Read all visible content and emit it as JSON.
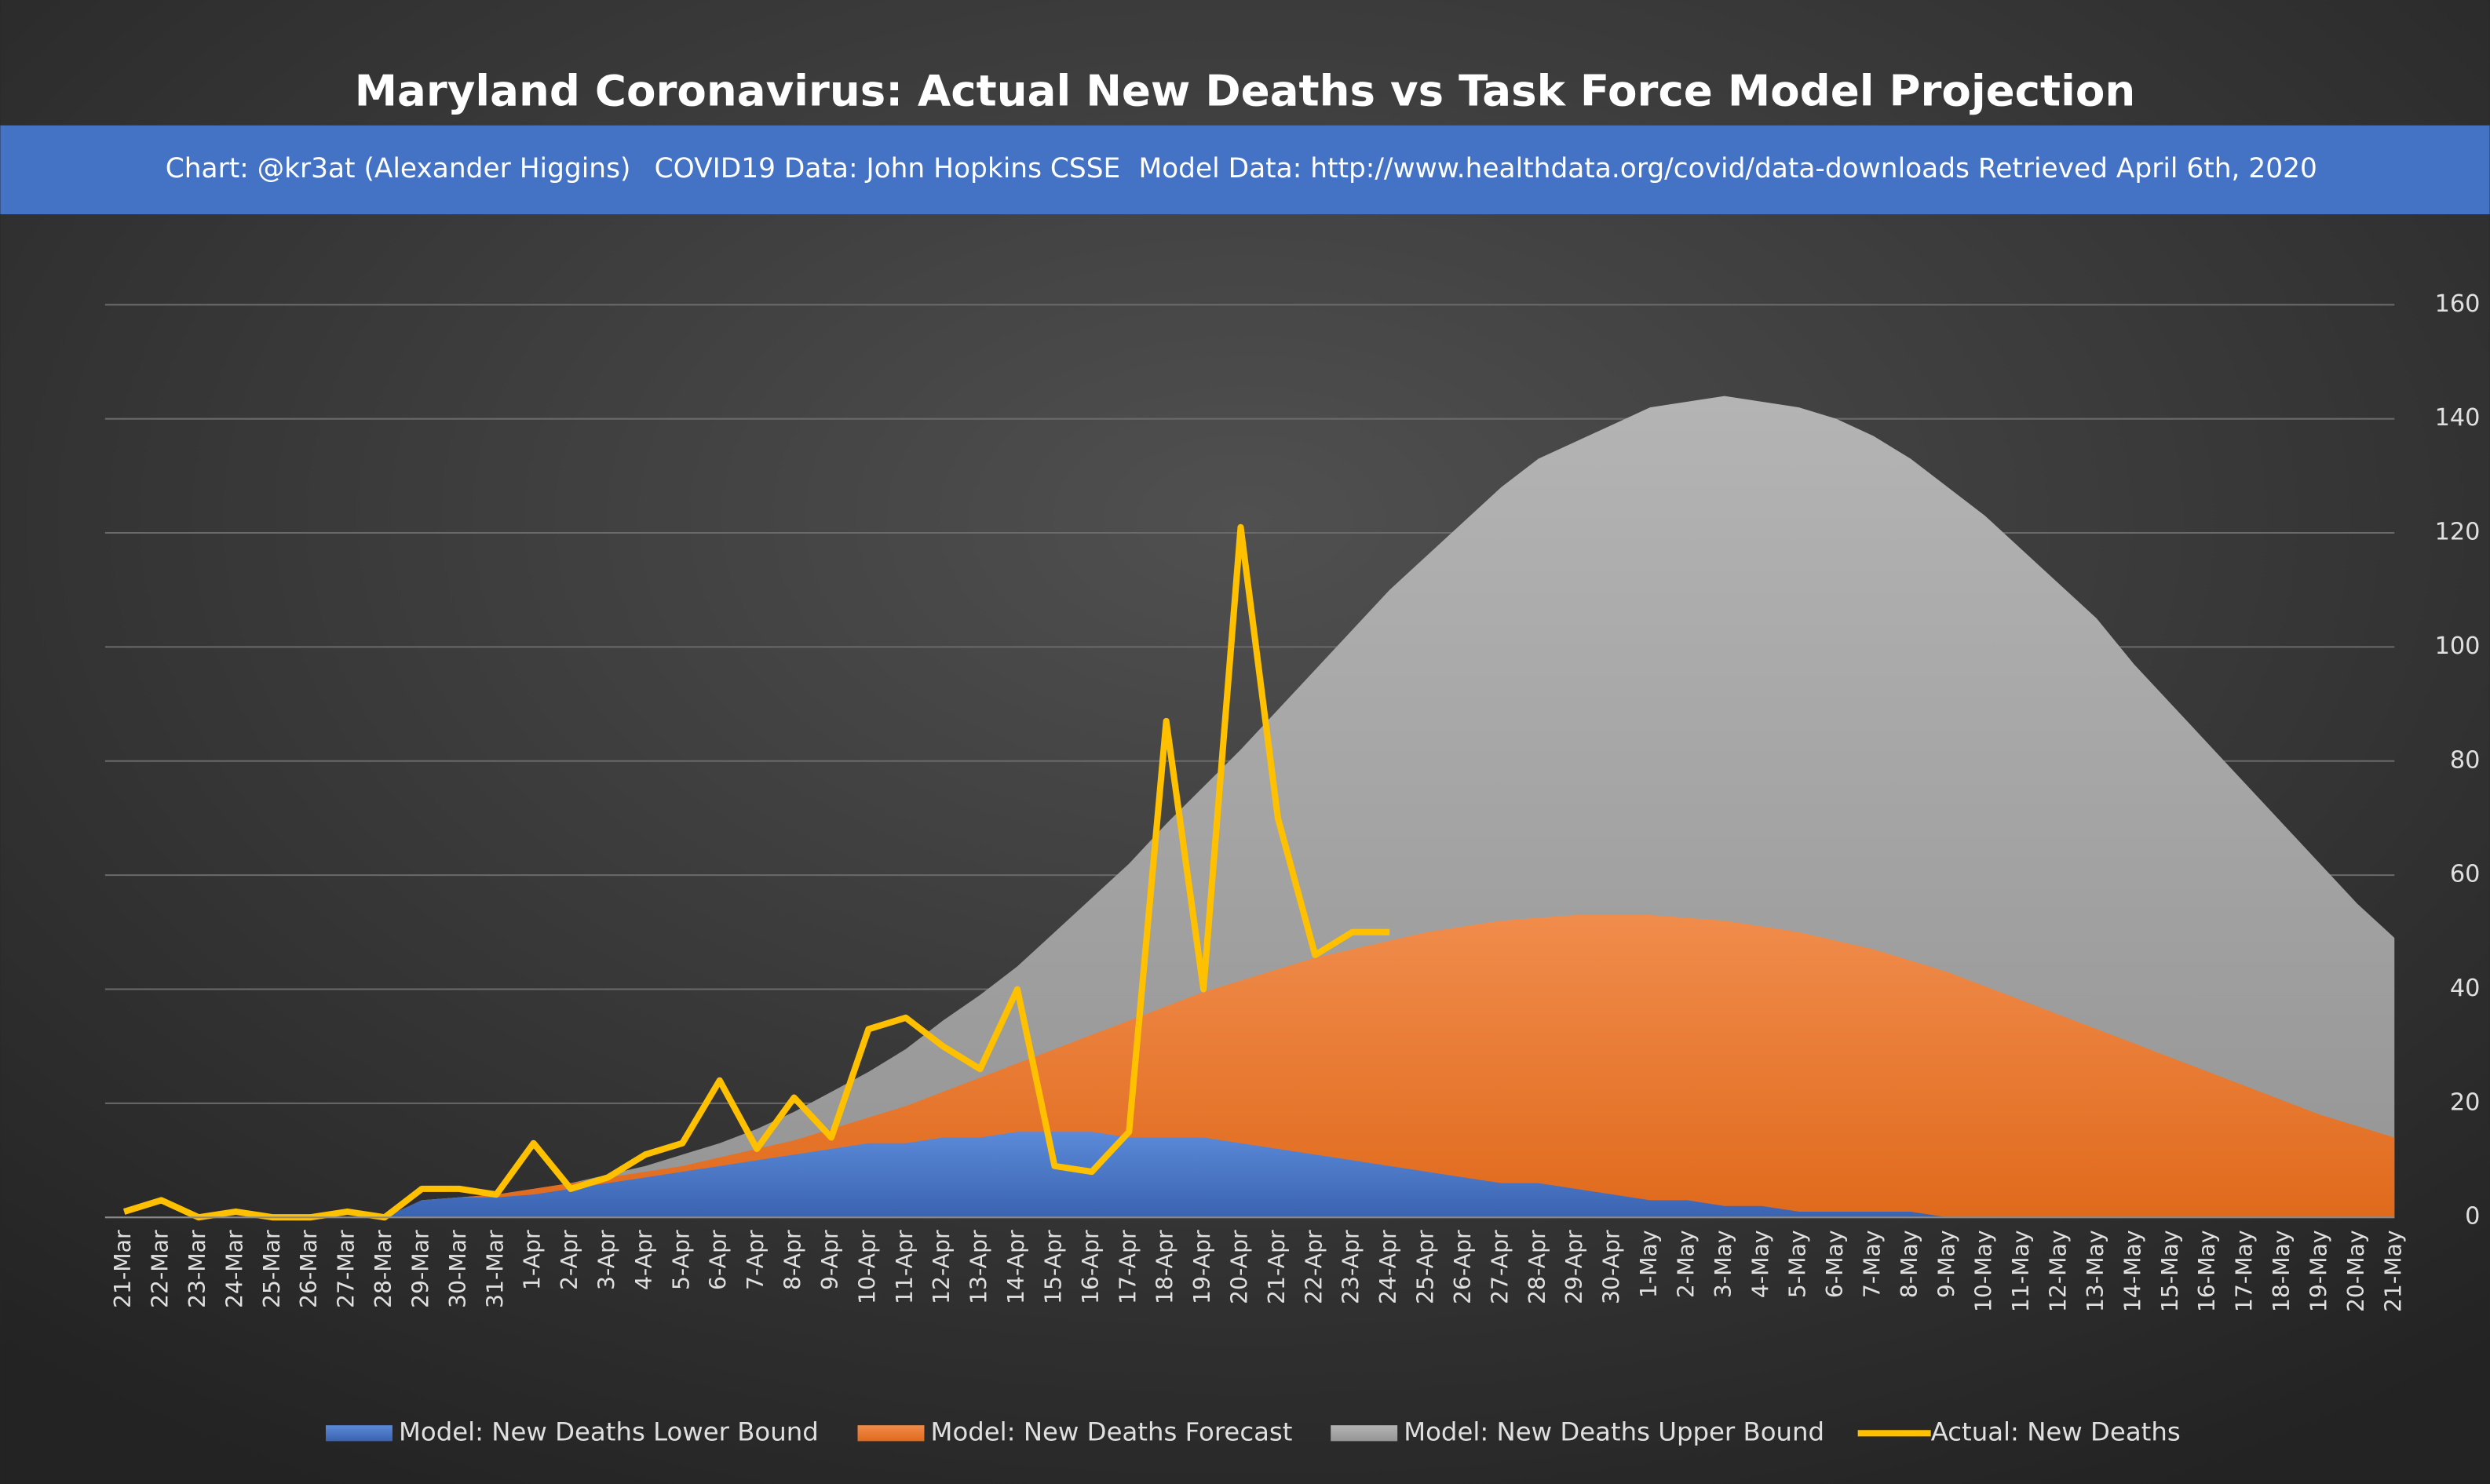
{
  "chart_data": {
    "type": "area",
    "title": "Maryland Coronavirus: Actual New Deaths vs Task Force Model Projection",
    "subtitle": [
      "Chart: @kr3at (Alexander Higgins)",
      "COVID19 Data: John Hopkins CSSE",
      "Model Data: http://www.healthdata.org/covid/data-downloads Retrieved April 6th, 2020"
    ],
    "categories": [
      "21-Mar",
      "22-Mar",
      "23-Mar",
      "24-Mar",
      "25-Mar",
      "26-Mar",
      "27-Mar",
      "28-Mar",
      "29-Mar",
      "30-Mar",
      "31-Mar",
      "1-Apr",
      "2-Apr",
      "3-Apr",
      "4-Apr",
      "5-Apr",
      "6-Apr",
      "7-Apr",
      "8-Apr",
      "9-Apr",
      "10-Apr",
      "11-Apr",
      "12-Apr",
      "13-Apr",
      "14-Apr",
      "15-Apr",
      "16-Apr",
      "17-Apr",
      "18-Apr",
      "19-Apr",
      "20-Apr",
      "21-Apr",
      "22-Apr",
      "23-Apr",
      "24-Apr",
      "25-Apr",
      "26-Apr",
      "27-Apr",
      "28-Apr",
      "29-Apr",
      "30-Apr",
      "1-May",
      "2-May",
      "3-May",
      "4-May",
      "5-May",
      "6-May",
      "7-May",
      "8-May",
      "9-May",
      "10-May",
      "11-May",
      "12-May",
      "13-May",
      "14-May",
      "15-May",
      "16-May",
      "17-May",
      "18-May",
      "19-May",
      "20-May",
      "21-May"
    ],
    "series": [
      {
        "name": "Model: New Deaths Lower Bound",
        "color": "#4472c4",
        "kind": "area",
        "values": [
          0,
          0,
          0,
          0,
          0,
          0,
          0,
          0,
          3,
          3.5,
          3.5,
          4,
          5,
          6,
          7,
          8,
          9,
          10,
          11,
          12,
          13,
          13,
          14,
          14,
          15,
          15,
          15,
          14,
          14,
          14,
          13,
          12,
          11,
          10,
          9,
          8,
          7,
          6,
          6,
          5,
          4,
          3,
          3,
          2,
          2,
          1,
          1,
          1,
          1,
          0,
          0,
          0,
          0,
          0,
          0,
          0,
          0,
          0,
          0,
          0,
          0,
          0
        ]
      },
      {
        "name": "Model: New Deaths Forecast",
        "color": "#ed7d31",
        "kind": "area",
        "values": [
          0,
          0,
          0,
          0,
          0,
          0,
          0,
          0,
          3,
          3.5,
          4,
          5,
          6,
          7,
          8,
          9,
          10.5,
          12,
          13.5,
          15.5,
          17.5,
          19.5,
          22,
          24.5,
          27,
          29.5,
          32,
          34.5,
          37,
          39.5,
          41.5,
          43.5,
          45.5,
          47,
          48.5,
          50,
          51,
          52,
          52.5,
          53,
          53,
          53,
          52.5,
          52,
          51,
          50,
          48.5,
          47,
          45,
          43,
          40.5,
          38,
          35.5,
          33,
          30.5,
          28,
          25.5,
          23,
          20.5,
          18,
          16,
          14
        ]
      },
      {
        "name": "Model: New Deaths Upper Bound",
        "color": "#a5a5a5",
        "kind": "area",
        "values": [
          0,
          0,
          0,
          0,
          0,
          0,
          0,
          0,
          3,
          3.5,
          4,
          5,
          6,
          7.5,
          9,
          11,
          13,
          15.5,
          18.5,
          22,
          25.5,
          29.5,
          34.5,
          39,
          44,
          50,
          56,
          62,
          69,
          75.5,
          82,
          89,
          96,
          103,
          110,
          116,
          122,
          128,
          133,
          136,
          139,
          142,
          143,
          144,
          143,
          142,
          140,
          137,
          133,
          128,
          123,
          117,
          111,
          105,
          97,
          90,
          83,
          76,
          69,
          62,
          55,
          49
        ]
      },
      {
        "name": "Actual: New Deaths",
        "color": "#ffc000",
        "kind": "line",
        "values": [
          1,
          3,
          0,
          1,
          0,
          0,
          1,
          0,
          5,
          5,
          4,
          13,
          5,
          7,
          11,
          13,
          24,
          12,
          21,
          14,
          33,
          35,
          30,
          26,
          40,
          9,
          8,
          15,
          87,
          40,
          121,
          70,
          46,
          50,
          50,
          null,
          null,
          null,
          null,
          null,
          null,
          null,
          null,
          null,
          null,
          null,
          null,
          null,
          null,
          null,
          null,
          null,
          null,
          null,
          null,
          null,
          null,
          null,
          null,
          null,
          null,
          null
        ]
      }
    ],
    "ylim": [
      0,
      160
    ],
    "yticks": [
      0,
      20,
      40,
      60,
      80,
      100,
      120,
      140,
      160
    ],
    "y_axis_side": "right",
    "grid": true,
    "legend": "bottom"
  }
}
